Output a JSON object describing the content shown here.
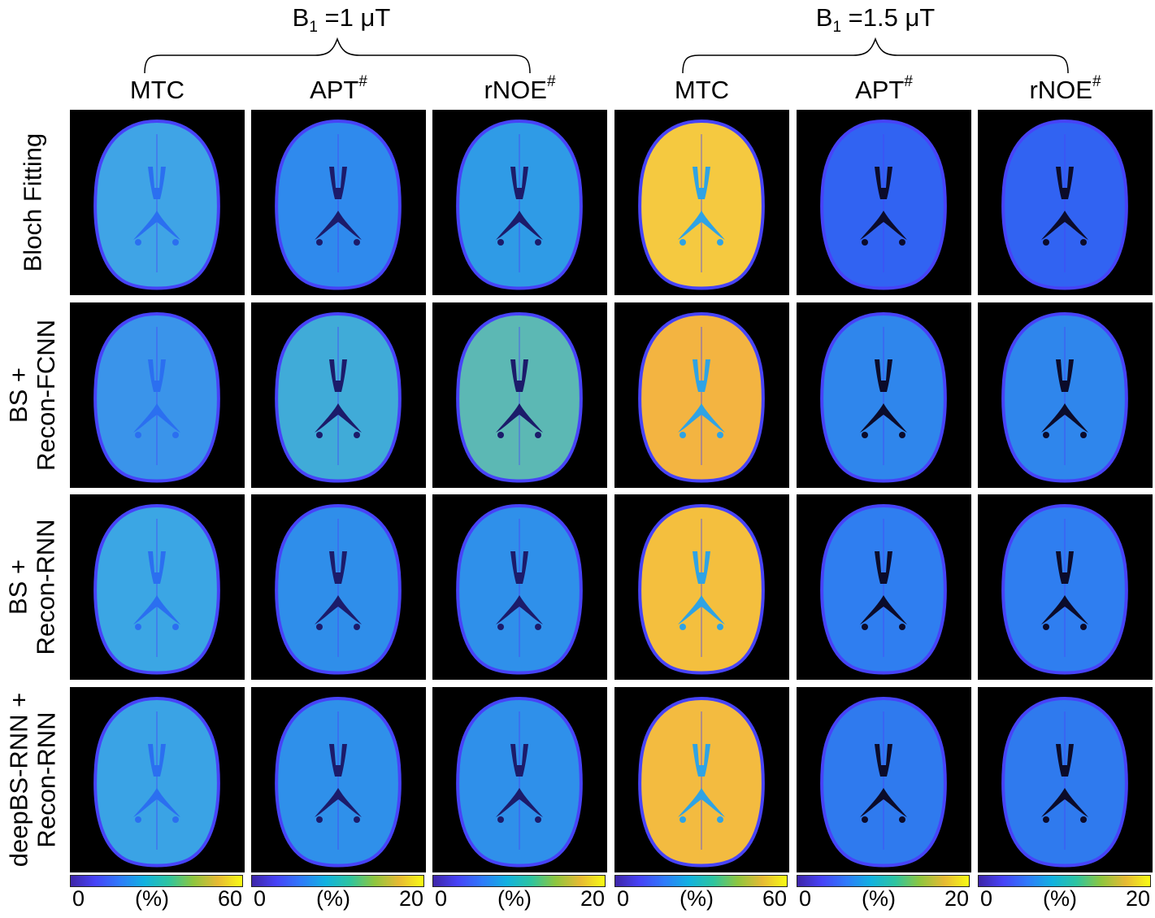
{
  "groups": [
    {
      "title_prefix": "B",
      "title_sub": "1",
      "title_value": " =1 μT"
    },
    {
      "title_prefix": "B",
      "title_sub": "1",
      "title_value": " =1.5 μT"
    }
  ],
  "columns": [
    {
      "label": "MTC",
      "sup": ""
    },
    {
      "label": "APT",
      "sup": "#"
    },
    {
      "label": "rNOE",
      "sup": "#"
    },
    {
      "label": "MTC",
      "sup": ""
    },
    {
      "label": "APT",
      "sup": "#"
    },
    {
      "label": "rNOE",
      "sup": "#"
    }
  ],
  "rows": [
    {
      "line1": "Bloch Fitting",
      "line2": ""
    },
    {
      "line1": "BS +",
      "line2": "Recon-FCNN"
    },
    {
      "line1": "BS +",
      "line2": "Recon-RNN"
    },
    {
      "line1": "deepBS-RNN +",
      "line2": "Recon-RNN"
    }
  ],
  "colorbars": [
    {
      "min": "0",
      "unit": "(%)",
      "max": "60"
    },
    {
      "min": "0",
      "unit": "(%)",
      "max": "20"
    },
    {
      "min": "0",
      "unit": "(%)",
      "max": "20"
    },
    {
      "min": "0",
      "unit": "(%)",
      "max": "60"
    },
    {
      "min": "0",
      "unit": "(%)",
      "max": "20"
    },
    {
      "min": "0",
      "unit": "(%)",
      "max": "20"
    }
  ],
  "colors": {
    "colormap": [
      "#3e26a8",
      "#4743f8",
      "#2f7bfb",
      "#12b2e0",
      "#2ec5a0",
      "#8ec63f",
      "#e7ba34",
      "#f9fb14"
    ],
    "panel_fill": [
      [
        "#3fa4e6",
        "#2f8aed",
        "#2f9be6",
        "#f5c940",
        "#3163f2",
        "#3163f2"
      ],
      [
        "#3a94ea",
        "#40abd8",
        "#5cb8b4",
        "#f3b441",
        "#2f86ec",
        "#2f86ec"
      ],
      [
        "#3ba6e4",
        "#2f8eea",
        "#2f90ea",
        "#f4bf3e",
        "#2f7ef0",
        "#2f7ef0"
      ],
      [
        "#3aa3e5",
        "#2f90ea",
        "#2f90ea",
        "#f3bb40",
        "#2f7aee",
        "#2f7aee"
      ]
    ],
    "ventricle": [
      "#2b6ff0",
      "#1c1b6a",
      "#1c1b6a",
      "#2fa3e4",
      "#0b0b2a",
      "#0b0b2a"
    ]
  }
}
